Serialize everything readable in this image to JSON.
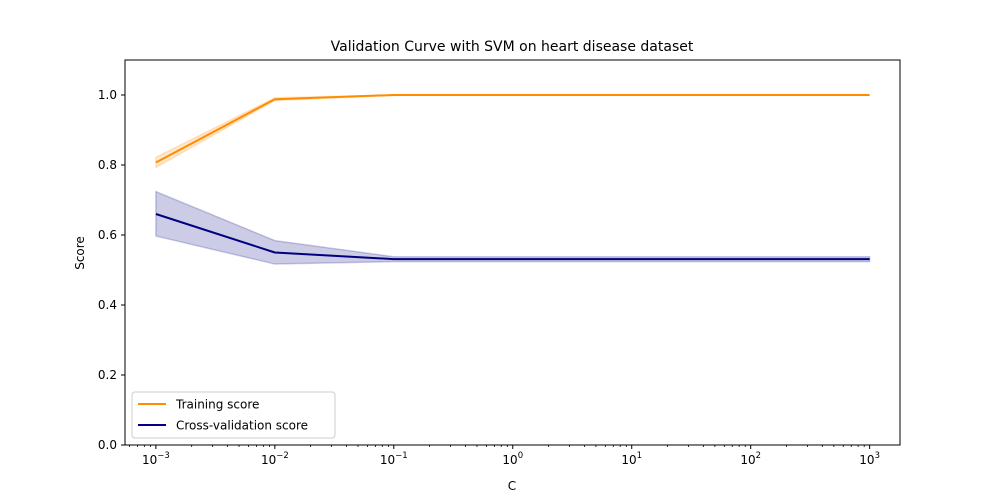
{
  "chart_data": {
    "type": "line",
    "title": "Validation Curve with SVM on heart disease dataset",
    "xlabel": "C",
    "ylabel": "Score",
    "xscale": "log",
    "xlim": [
      0.00055,
      1800
    ],
    "ylim": [
      0.0,
      1.1
    ],
    "grid": false,
    "legend_position": "lower-left",
    "x": [
      0.001,
      0.01,
      0.1,
      1,
      10,
      100,
      1000
    ],
    "xticks": [
      {
        "value": 0.001,
        "base": "10",
        "exp": "−3"
      },
      {
        "value": 0.01,
        "base": "10",
        "exp": "−2"
      },
      {
        "value": 0.1,
        "base": "10",
        "exp": "−1"
      },
      {
        "value": 1,
        "base": "10",
        "exp": "0"
      },
      {
        "value": 10,
        "base": "10",
        "exp": "1"
      },
      {
        "value": 100,
        "base": "10",
        "exp": "2"
      },
      {
        "value": 1000,
        "base": "10",
        "exp": "3"
      }
    ],
    "yticks": [
      {
        "value": 0.0,
        "label": "0.0"
      },
      {
        "value": 0.2,
        "label": "0.2"
      },
      {
        "value": 0.4,
        "label": "0.4"
      },
      {
        "value": 0.6,
        "label": "0.6"
      },
      {
        "value": 0.8,
        "label": "0.8"
      },
      {
        "value": 1.0,
        "label": "1.0"
      }
    ],
    "series": [
      {
        "name": "Training score",
        "color": "#ff8c00",
        "band_color": "#ff8c00",
        "values": [
          0.807,
          0.988,
          1.0,
          1.0,
          1.0,
          1.0,
          1.0
        ],
        "lower": [
          0.793,
          0.984,
          0.999,
          1.0,
          1.0,
          1.0,
          1.0
        ],
        "upper": [
          0.822,
          0.992,
          1.0,
          1.0,
          1.0,
          1.0,
          1.0
        ]
      },
      {
        "name": "Cross-validation score",
        "color": "#000080",
        "band_color": "#000080",
        "values": [
          0.66,
          0.55,
          0.531,
          0.531,
          0.531,
          0.531,
          0.531
        ],
        "lower": [
          0.597,
          0.517,
          0.524,
          0.524,
          0.524,
          0.524,
          0.524
        ],
        "upper": [
          0.724,
          0.584,
          0.538,
          0.538,
          0.538,
          0.538,
          0.538
        ]
      }
    ]
  }
}
